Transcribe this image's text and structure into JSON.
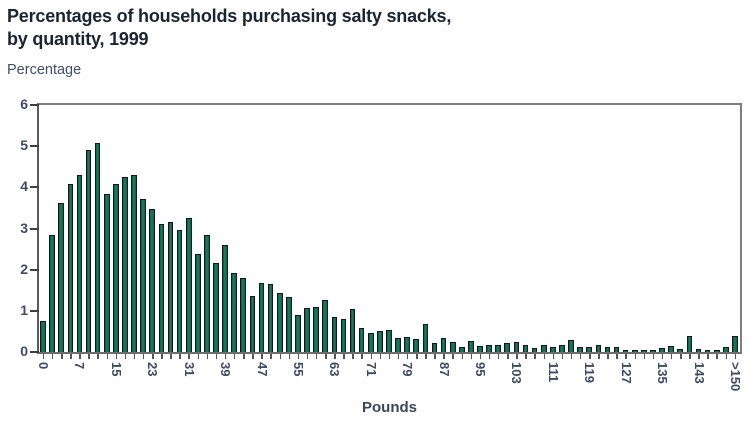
{
  "title": {
    "line1": "Percentages of households purchasing salty snacks,",
    "line2": "by quantity, 1999"
  },
  "chart_data": {
    "type": "bar",
    "title": "Percentages of households purchasing salty snacks, by quantity, 1999",
    "ylabel": "Percentage",
    "xlabel": "Pounds",
    "ylim": [
      0,
      6
    ],
    "yticks": [
      0,
      1,
      2,
      3,
      4,
      5,
      6
    ],
    "grid": false,
    "legend": "none",
    "x_tick_label_every": 4,
    "x_tick_labels": [
      "0",
      "7",
      "15",
      "23",
      "31",
      "39",
      "47",
      "55",
      "63",
      "71",
      "79",
      "87",
      "95",
      "103",
      "111",
      "119",
      "127",
      "135",
      "143",
      ">150"
    ],
    "values": [
      0.75,
      2.85,
      3.62,
      4.07,
      4.29,
      4.9,
      5.07,
      3.85,
      4.07,
      4.26,
      4.29,
      3.72,
      3.47,
      3.11,
      3.15,
      2.97,
      3.26,
      2.38,
      2.85,
      2.16,
      2.6,
      1.92,
      1.8,
      1.37,
      1.68,
      1.65,
      1.44,
      1.33,
      0.89,
      1.06,
      1.09,
      1.26,
      0.84,
      0.8,
      1.04,
      0.58,
      0.45,
      0.52,
      0.54,
      0.35,
      0.37,
      0.31,
      0.68,
      0.22,
      0.34,
      0.24,
      0.12,
      0.26,
      0.14,
      0.17,
      0.16,
      0.23,
      0.25,
      0.18,
      0.1,
      0.16,
      0.13,
      0.16,
      0.29,
      0.11,
      0.12,
      0.16,
      0.11,
      0.13,
      0.04,
      0.05,
      0.04,
      0.05,
      0.1,
      0.15,
      0.07,
      0.38,
      0.07,
      0.04,
      0.06,
      0.12,
      0.38
    ],
    "colors": {
      "bar_fill": "#106b50",
      "bar_border": "#161616",
      "frame": "#7e7e7e",
      "tick": "#3f3f3f",
      "axis_text": "#3e4b66",
      "title_text": "#1b2433"
    }
  }
}
